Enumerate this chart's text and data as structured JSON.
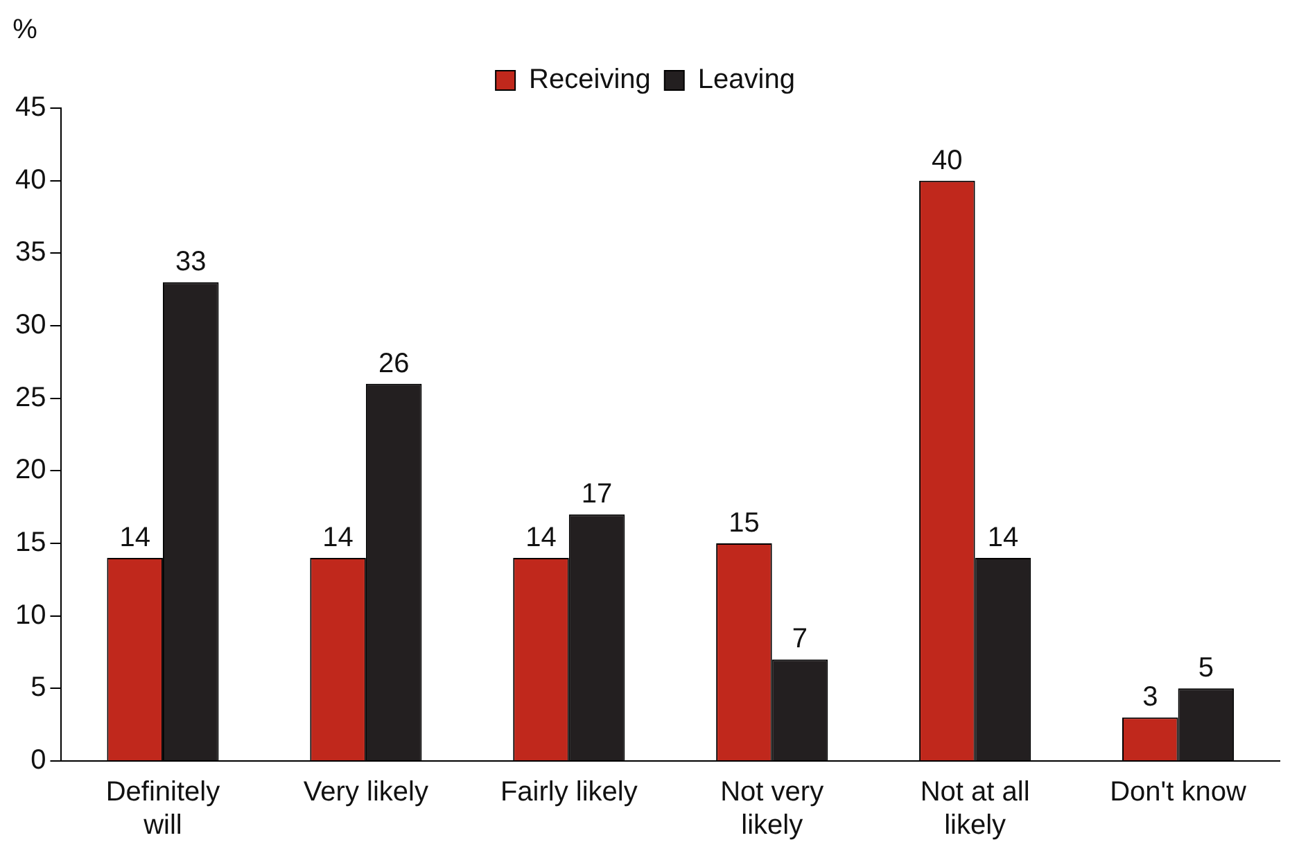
{
  "chart_data": {
    "type": "bar",
    "ylabel": "%",
    "categories": [
      "Definitely will",
      "Very likely",
      "Fairly likely",
      "Not very likely",
      "Not at all likely",
      "Don't know"
    ],
    "series": [
      {
        "name": "Receiving",
        "color": "#c0281c",
        "values": [
          14,
          14,
          14,
          15,
          40,
          3
        ]
      },
      {
        "name": "Leaving",
        "color": "#231f20",
        "values": [
          33,
          26,
          17,
          7,
          14,
          5
        ]
      }
    ],
    "ylim": [
      0,
      45
    ],
    "yticks": [
      0,
      5,
      10,
      15,
      20,
      25,
      30,
      35,
      40,
      45
    ],
    "data_labels": true,
    "grid": false,
    "legend": "top"
  }
}
